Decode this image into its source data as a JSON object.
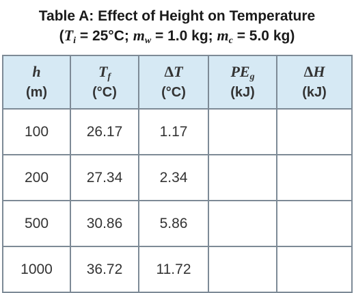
{
  "title": {
    "line1": "Table A: Effect of Height on Temperature",
    "ti_sym": "T",
    "ti_sub": "i",
    "ti_val": "= 25°C;",
    "mw_sym": "m",
    "mw_sub": "w",
    "mw_val": "= 1.0 kg;",
    "mc_sym": "m",
    "mc_sub": "c",
    "mc_val": "= 5.0 kg)"
  },
  "headers": [
    {
      "symbol": "h",
      "sub": "",
      "prefix": "",
      "unit": "(m)"
    },
    {
      "symbol": "T",
      "sub": "f",
      "prefix": "",
      "unit": "(°C)"
    },
    {
      "symbol": "T",
      "sub": "",
      "prefix": "Δ",
      "unit": "(°C)"
    },
    {
      "symbol": "PE",
      "sub": "g",
      "prefix": "",
      "unit": "(kJ)"
    },
    {
      "symbol": "H",
      "sub": "",
      "prefix": "Δ",
      "unit": "(kJ)"
    }
  ],
  "rows": [
    [
      "100",
      "26.17",
      "1.17",
      "",
      ""
    ],
    [
      "200",
      "27.34",
      "2.34",
      "",
      ""
    ],
    [
      "500",
      "30.86",
      "5.86",
      "",
      ""
    ],
    [
      "1000",
      "36.72",
      "11.72",
      "",
      ""
    ]
  ]
}
